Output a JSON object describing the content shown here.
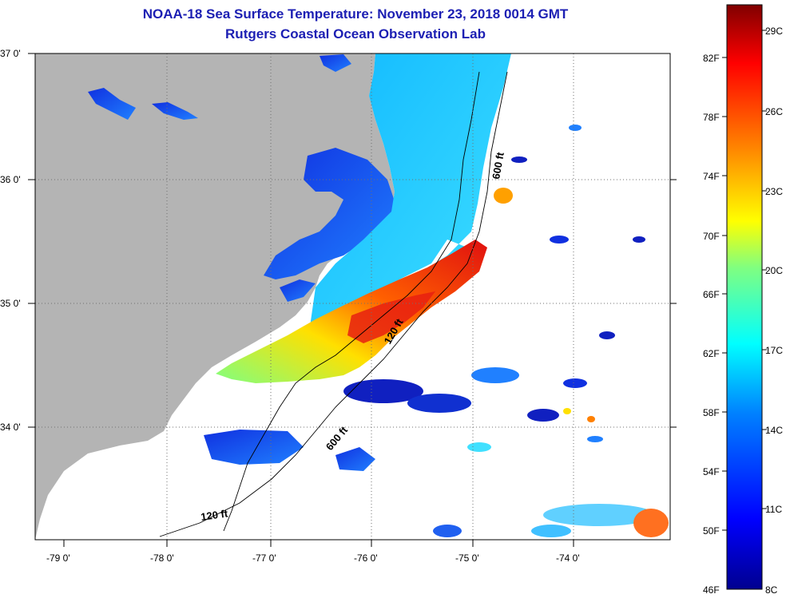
{
  "header": {
    "title": "NOAA-18 Sea Surface Temperature:  November 23, 2018 0014 GMT",
    "subtitle": "Rutgers Coastal Ocean Observation Lab"
  },
  "map": {
    "lon_labels": [
      "-79 0'",
      "-78 0'",
      "-77 0'",
      "-76 0'",
      "-75 0'",
      "-74 0'"
    ],
    "lat_labels": [
      "37 0'",
      "36 0'",
      "35 0'",
      "34 0'"
    ],
    "contour_labels": {
      "c600_north": "600 ft",
      "c120_mid": "120 ft",
      "c600_south": "600 ft",
      "c120_south": "120 ft"
    },
    "colors": {
      "land": "#b4b4b4",
      "ocean_nodata": "#ffffff",
      "title": "#1c1fb3"
    }
  },
  "colorbar": {
    "fahrenheit_labels": [
      "82F",
      "78F",
      "74F",
      "70F",
      "66F",
      "62F",
      "58F",
      "54F",
      "50F",
      "46F"
    ],
    "celsius_labels": [
      "29C",
      "26C",
      "23C",
      "20C",
      "17C",
      "14C",
      "11C",
      "8C"
    ],
    "color_stops": [
      "#00008f",
      "#0000ff",
      "#0080ff",
      "#00ffff",
      "#80ff80",
      "#ffff00",
      "#ff8000",
      "#ff0000",
      "#800000"
    ]
  }
}
